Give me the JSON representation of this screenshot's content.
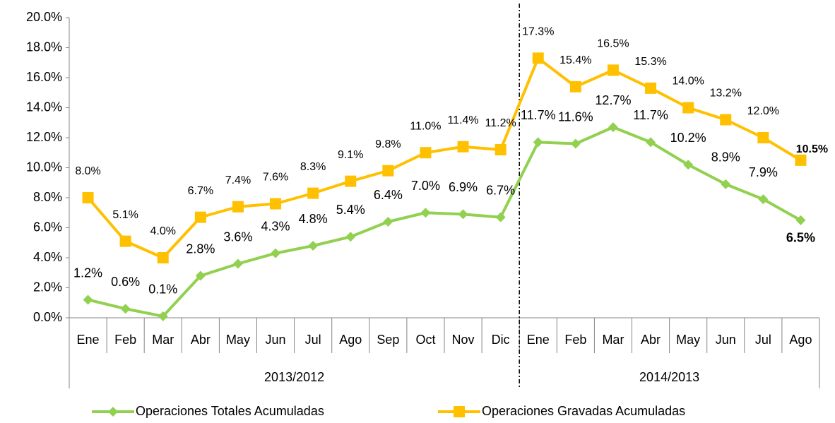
{
  "chart_data": {
    "type": "line",
    "categories": [
      "Ene",
      "Feb",
      "Mar",
      "Abr",
      "May",
      "Jun",
      "Jul",
      "Ago",
      "Sep",
      "Oct",
      "Nov",
      "Dic",
      "Ene",
      "Feb",
      "Mar",
      "Abr",
      "May",
      "Jun",
      "Jul",
      "Ago"
    ],
    "groups": [
      {
        "label": "2013/2012",
        "count": 12
      },
      {
        "label": "2014/2013",
        "count": 8
      }
    ],
    "series": [
      {
        "name": "Operaciones Totales Acumuladas",
        "color": "#92d050",
        "marker": "diamond",
        "values": [
          1.2,
          0.6,
          0.1,
          2.8,
          3.6,
          4.3,
          4.8,
          5.4,
          6.4,
          7.0,
          6.9,
          6.7,
          11.7,
          11.6,
          12.7,
          11.7,
          10.2,
          8.9,
          7.9,
          6.5
        ],
        "value_labels": [
          "1.2%",
          "0.6%",
          "0.1%",
          "2.8%",
          "3.6%",
          "4.3%",
          "4.8%",
          "5.4%",
          "6.4%",
          "7.0%",
          "6.9%",
          "6.7%",
          "11.7%",
          "11.6%",
          "12.7%",
          "11.7%",
          "10.2%",
          "8.9%",
          "7.9%",
          "6.5%"
        ]
      },
      {
        "name": "Operaciones Gravadas Acumuladas",
        "color": "#ffc000",
        "marker": "square",
        "values": [
          8.0,
          5.1,
          4.0,
          6.7,
          7.4,
          7.6,
          8.3,
          9.1,
          9.8,
          11.0,
          11.4,
          11.2,
          17.3,
          15.4,
          16.5,
          15.3,
          14.0,
          13.2,
          12.0,
          10.5
        ],
        "value_labels": [
          "8.0%",
          "5.1%",
          "4.0%",
          "6.7%",
          "7.4%",
          "7.6%",
          "8.3%",
          "9.1%",
          "9.8%",
          "11.0%",
          "11.4%",
          "11.2%",
          "17.3%",
          "15.4%",
          "16.5%",
          "15.3%",
          "14.0%",
          "13.2%",
          "12.0%",
          "10.5%"
        ]
      }
    ],
    "ylim": [
      0,
      20
    ],
    "yticks": [
      {
        "value": 0,
        "label": "0.0%"
      },
      {
        "value": 2,
        "label": "2.0%"
      },
      {
        "value": 4,
        "label": "4.0%"
      },
      {
        "value": 6,
        "label": "6.0%"
      },
      {
        "value": 8,
        "label": "8.0%"
      },
      {
        "value": 10,
        "label": "10.0%"
      },
      {
        "value": 12,
        "label": "12.0%"
      },
      {
        "value": 14,
        "label": "14.0%"
      },
      {
        "value": 16,
        "label": "16.0%"
      },
      {
        "value": 18,
        "label": "18.0%"
      },
      {
        "value": 20,
        "label": "20.0%"
      }
    ],
    "legend": "bottom"
  }
}
